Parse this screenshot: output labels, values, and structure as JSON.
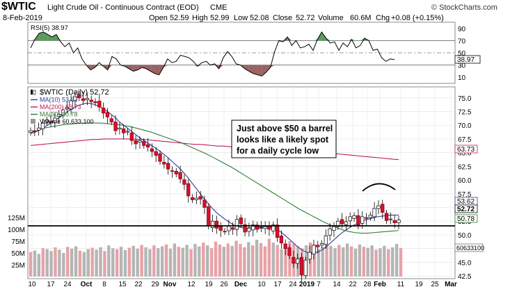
{
  "header": {
    "symbol": "$WTIC",
    "description": "Light Crude Oil - Continuous Contract (EOD)",
    "exchange": "CME",
    "watermark": "© StockCharts.com",
    "date": "8-Feb-2019",
    "open_label": "Open",
    "open": "52.59",
    "high_label": "High",
    "high": "52.99",
    "low_label": "Low",
    "low": "52.08",
    "close_label": "Close",
    "close": "52.72",
    "volume_label": "Volume",
    "volume": "60.6M",
    "chg_label": "Chg",
    "chg": "+0.08 (+0.15%)"
  },
  "annotation": {
    "lines": [
      "Just above $50 a barrel",
      "looks like a likely spot",
      "for a daily cycle low"
    ]
  },
  "chart_data": [
    {
      "type": "line",
      "title": "RSI(5) 38.97",
      "ylim": [
        0,
        100
      ],
      "reference_lines": [
        70,
        50,
        30
      ],
      "y_ticks": [
        "90",
        "70",
        "50",
        "30",
        "10"
      ],
      "last_value_label": "38.97",
      "values": [
        58,
        72,
        82,
        84,
        80,
        76,
        80,
        68,
        60,
        66,
        50,
        58,
        40,
        30,
        22,
        26,
        34,
        28,
        22,
        44,
        40,
        30,
        28,
        24,
        20,
        22,
        26,
        24,
        20,
        16,
        14,
        26,
        40,
        34,
        36,
        46,
        44,
        42,
        36,
        28,
        34,
        36,
        30,
        32,
        24,
        42,
        52,
        44,
        32,
        30,
        24,
        20,
        16,
        14,
        12,
        18,
        26,
        52,
        70,
        68,
        76,
        62,
        70,
        58,
        60,
        64,
        54,
        72,
        84,
        74,
        66,
        68,
        54,
        66,
        60,
        72,
        58,
        62,
        74,
        70,
        54,
        56,
        42,
        36,
        40,
        38.97
      ],
      "colors": {
        "line": "#000000",
        "overbought": "#5a9a5a",
        "oversold": "#9a6262"
      }
    },
    {
      "type": "candlestick",
      "title": "$WTIC (Daily) 52.72",
      "ylim": [
        42,
        77
      ],
      "y_ticks": [
        "75.0",
        "72.5",
        "70.0",
        "67.5",
        "65.0",
        "62.5",
        "60.0",
        "57.5",
        "55.0",
        "52.5",
        "50.0",
        "47.5",
        "45.0",
        "42.5"
      ],
      "x_ticks": [
        "10",
        "17",
        "24",
        "Oct",
        "8",
        "15",
        "22",
        "29",
        "Nov",
        "12",
        "19",
        "26",
        "Dec",
        "10",
        "17",
        "24",
        "2019",
        "7",
        "14",
        "22",
        "28",
        "Feb",
        "11",
        "19",
        "25",
        "Mar"
      ],
      "legend": [
        {
          "label": "$WTIC (Daily) 52.72",
          "color": "#000000"
        },
        {
          "label": "MA(10) 53.62",
          "color": "#2b3a9a"
        },
        {
          "label": "MA(200) 63.73",
          "color": "#c2185b"
        },
        {
          "label": "MA(50) 50.78",
          "color": "#2e7d32"
        },
        {
          "label": "Volume 60,633,100",
          "color": "#999999"
        }
      ],
      "closes": [
        69.0,
        68.8,
        69.5,
        70.4,
        71.0,
        70.5,
        71.3,
        72.0,
        72.8,
        73.2,
        74.5,
        75.3,
        75.0,
        74.5,
        74.9,
        74.3,
        74.1,
        73.3,
        72.2,
        71.5,
        70.6,
        69.0,
        69.5,
        68.6,
        68.9,
        67.2,
        66.6,
        67.2,
        66.3,
        66.0,
        65.2,
        64.5,
        63.4,
        62.9,
        62.0,
        61.6,
        61.1,
        60.2,
        59.2,
        57.1,
        56.4,
        56.7,
        56.5,
        55.0,
        51.6,
        52.5,
        51.2,
        50.8,
        50.6,
        51.6,
        51.0,
        52.8,
        52.0,
        50.5,
        51.2,
        51.8,
        51.0,
        51.3,
        51.5,
        51.0,
        51.8,
        49.5,
        48.5,
        47.5,
        46.2,
        44.8,
        45.6,
        42.7,
        45.4,
        46.8,
        48.1,
        47.8,
        48.4,
        49.8,
        51.1,
        51.5,
        52.5,
        52.0,
        52.4,
        53.3,
        53.5,
        51.8,
        53.3,
        53.0,
        53.6,
        54.8,
        55.3,
        54.1,
        52.6,
        52.9,
        52.2,
        52.7
      ],
      "series": [
        {
          "name": "MA(10) 53.62",
          "values": [
            68.5,
            68.7,
            69.1,
            69.5,
            70.0,
            70.5,
            71.0,
            71.5,
            72.1,
            72.6,
            73.1,
            73.5,
            73.8,
            74.0,
            74.0,
            73.8,
            73.5,
            73.1,
            72.6,
            72.0,
            71.4,
            70.6,
            70.0,
            69.4,
            68.8,
            68.2,
            67.6,
            67.1,
            66.6,
            66.1,
            65.6,
            65.0,
            64.4,
            63.7,
            63.0,
            62.3,
            61.5,
            60.6,
            59.6,
            58.6,
            57.6,
            56.6,
            55.7,
            54.8,
            54.0,
            53.4,
            52.8,
            52.3,
            51.8,
            51.5,
            51.3,
            51.2,
            51.3,
            51.4,
            51.4,
            51.5,
            51.5,
            51.4,
            51.1,
            50.6,
            50.0,
            49.3,
            48.6,
            47.9,
            47.3,
            46.9,
            46.7,
            46.7,
            46.9,
            47.3,
            47.9,
            48.6,
            49.3,
            50.0,
            50.6,
            51.1,
            51.6,
            52.0,
            52.4,
            52.7,
            52.9,
            53.1,
            53.3,
            53.4,
            53.5,
            53.6,
            53.6,
            53.62
          ]
        },
        {
          "name": "MA(200) 63.73",
          "values": [
            66.3,
            66.4,
            66.5,
            66.6,
            66.7,
            66.8,
            66.9,
            67.0,
            67.1,
            67.2,
            67.3,
            67.4,
            67.4,
            67.5,
            67.5,
            67.5,
            67.5,
            67.5,
            67.5,
            67.4,
            67.4,
            67.3,
            67.2,
            67.1,
            67.0,
            66.9,
            66.8,
            66.7,
            66.6,
            66.5,
            66.5,
            66.4,
            66.3,
            66.2,
            66.2,
            66.1,
            66.0,
            66.0,
            65.9,
            65.8,
            65.8,
            65.7,
            65.6,
            65.6,
            65.5,
            65.4,
            65.4,
            65.3,
            65.2,
            65.2,
            65.1,
            65.0,
            65.0,
            64.9,
            64.8,
            64.7,
            64.6,
            64.5,
            64.4,
            64.3,
            64.2,
            64.1,
            64.0,
            63.9,
            63.8,
            63.73
          ]
        },
        {
          "name": "MA(50) 50.78",
          "values": [
            69.5,
            69.7,
            69.9,
            70.1,
            70.2,
            70.3,
            70.4,
            70.4,
            70.4,
            70.4,
            70.3,
            70.2,
            70.1,
            69.9,
            69.7,
            69.4,
            69.1,
            68.8,
            68.4,
            68.0,
            67.6,
            67.2,
            66.8,
            66.3,
            65.8,
            65.3,
            64.8,
            64.2,
            63.6,
            63.0,
            62.4,
            61.7,
            61.0,
            60.3,
            59.6,
            58.9,
            58.2,
            57.5,
            56.8,
            56.1,
            55.4,
            54.7,
            54.1,
            53.5,
            52.9,
            52.3,
            51.8,
            51.3,
            50.9,
            50.6,
            50.4,
            50.3,
            50.3,
            50.4,
            50.5,
            50.6,
            50.7,
            50.78
          ]
        }
      ]
    },
    {
      "type": "bar",
      "title": "Volume 60,633,100",
      "ylim": [
        0,
        125
      ],
      "y_ticks": [
        "125M",
        "100M",
        "75M",
        "50M",
        "25M"
      ],
      "last_value_label": "60633100",
      "values": [
        52,
        55,
        48,
        60,
        58,
        54,
        62,
        57,
        50,
        63,
        59,
        64,
        55,
        52,
        58,
        61,
        57,
        62,
        54,
        66,
        60,
        58,
        63,
        56,
        61,
        65,
        59,
        67,
        62,
        58,
        66,
        60,
        64,
        68,
        59,
        70,
        63,
        61,
        67,
        58,
        69,
        64,
        72,
        66,
        60,
        74,
        68,
        63,
        70,
        65,
        76,
        69,
        62,
        73,
        66,
        78,
        71,
        64,
        80,
        72,
        67,
        58,
        62,
        75,
        70,
        64,
        60,
        66,
        72,
        68,
        58,
        63,
        69,
        65,
        60,
        67,
        62,
        70,
        64,
        59,
        68,
        63,
        61,
        66,
        57,
        60,
        65,
        58,
        62,
        69,
        60.6
      ],
      "colors": {
        "up": "#b5b5b5",
        "down": "#e7a3a8"
      }
    }
  ]
}
